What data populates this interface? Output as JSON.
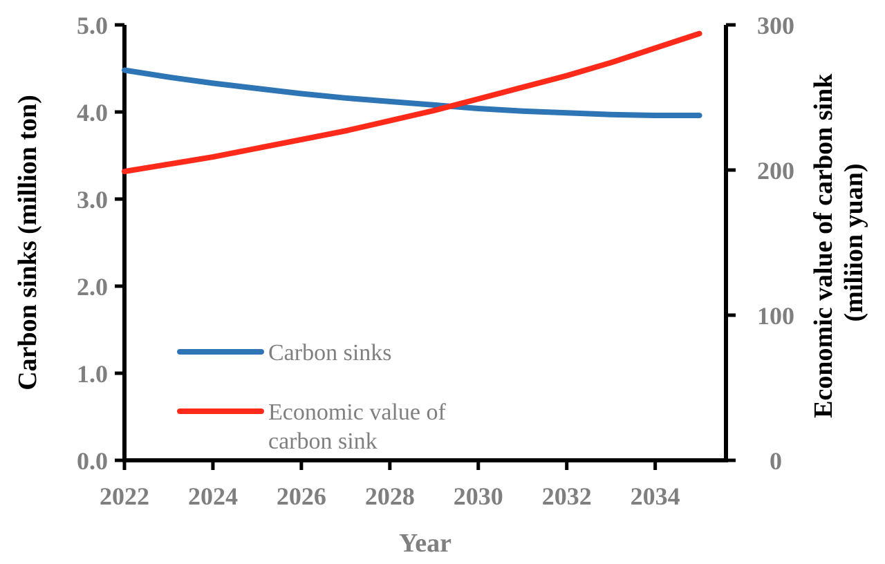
{
  "chart_data": {
    "type": "line",
    "title": "",
    "xlabel": "Year",
    "ylabel": "Carbon sinks (million ton)",
    "y2label_lines": [
      "Economic value of carbon sink",
      "(miliion yuan)"
    ],
    "xlim": [
      2022,
      2035.6
    ],
    "ylim": [
      0,
      5
    ],
    "y2lim": [
      0,
      300
    ],
    "x_ticks": [
      2022,
      2024,
      2026,
      2028,
      2030,
      2032,
      2034
    ],
    "x_tick_labels": [
      "2022",
      "2024",
      "2026",
      "2028",
      "2030",
      "2032",
      "2034"
    ],
    "y_ticks": [
      0,
      1,
      2,
      3,
      4,
      5
    ],
    "y_tick_labels": [
      "0.0",
      "1.0",
      "2.0",
      "3.0",
      "4.0",
      "5.0"
    ],
    "y2_ticks": [
      0,
      100,
      200,
      300
    ],
    "y2_tick_labels": [
      "0",
      "100",
      "200",
      "300"
    ],
    "x": [
      2022,
      2023,
      2024,
      2025,
      2026,
      2027,
      2028,
      2029,
      2030,
      2031,
      2032,
      2033,
      2034,
      2035
    ],
    "series": [
      {
        "name": "Carbon sinks",
        "axis": "left",
        "color": "#2e75b6",
        "values": [
          4.48,
          4.4,
          4.33,
          4.27,
          4.21,
          4.16,
          4.12,
          4.08,
          4.04,
          4.01,
          3.99,
          3.97,
          3.96,
          3.96
        ]
      },
      {
        "name": "Economic value of carbon sink",
        "axis": "right",
        "color": "#ff2a1a",
        "values": [
          199,
          204,
          209,
          215,
          221,
          227,
          234,
          241,
          249,
          257,
          265,
          274,
          284,
          294
        ]
      }
    ],
    "legend": {
      "placement": "bottom-left",
      "entries": [
        {
          "lines": [
            "Carbon sinks"
          ],
          "color": "#2e75b6"
        },
        {
          "lines": [
            "Economic value of",
            "carbon sink"
          ],
          "color": "#ff2a1a"
        }
      ]
    }
  }
}
